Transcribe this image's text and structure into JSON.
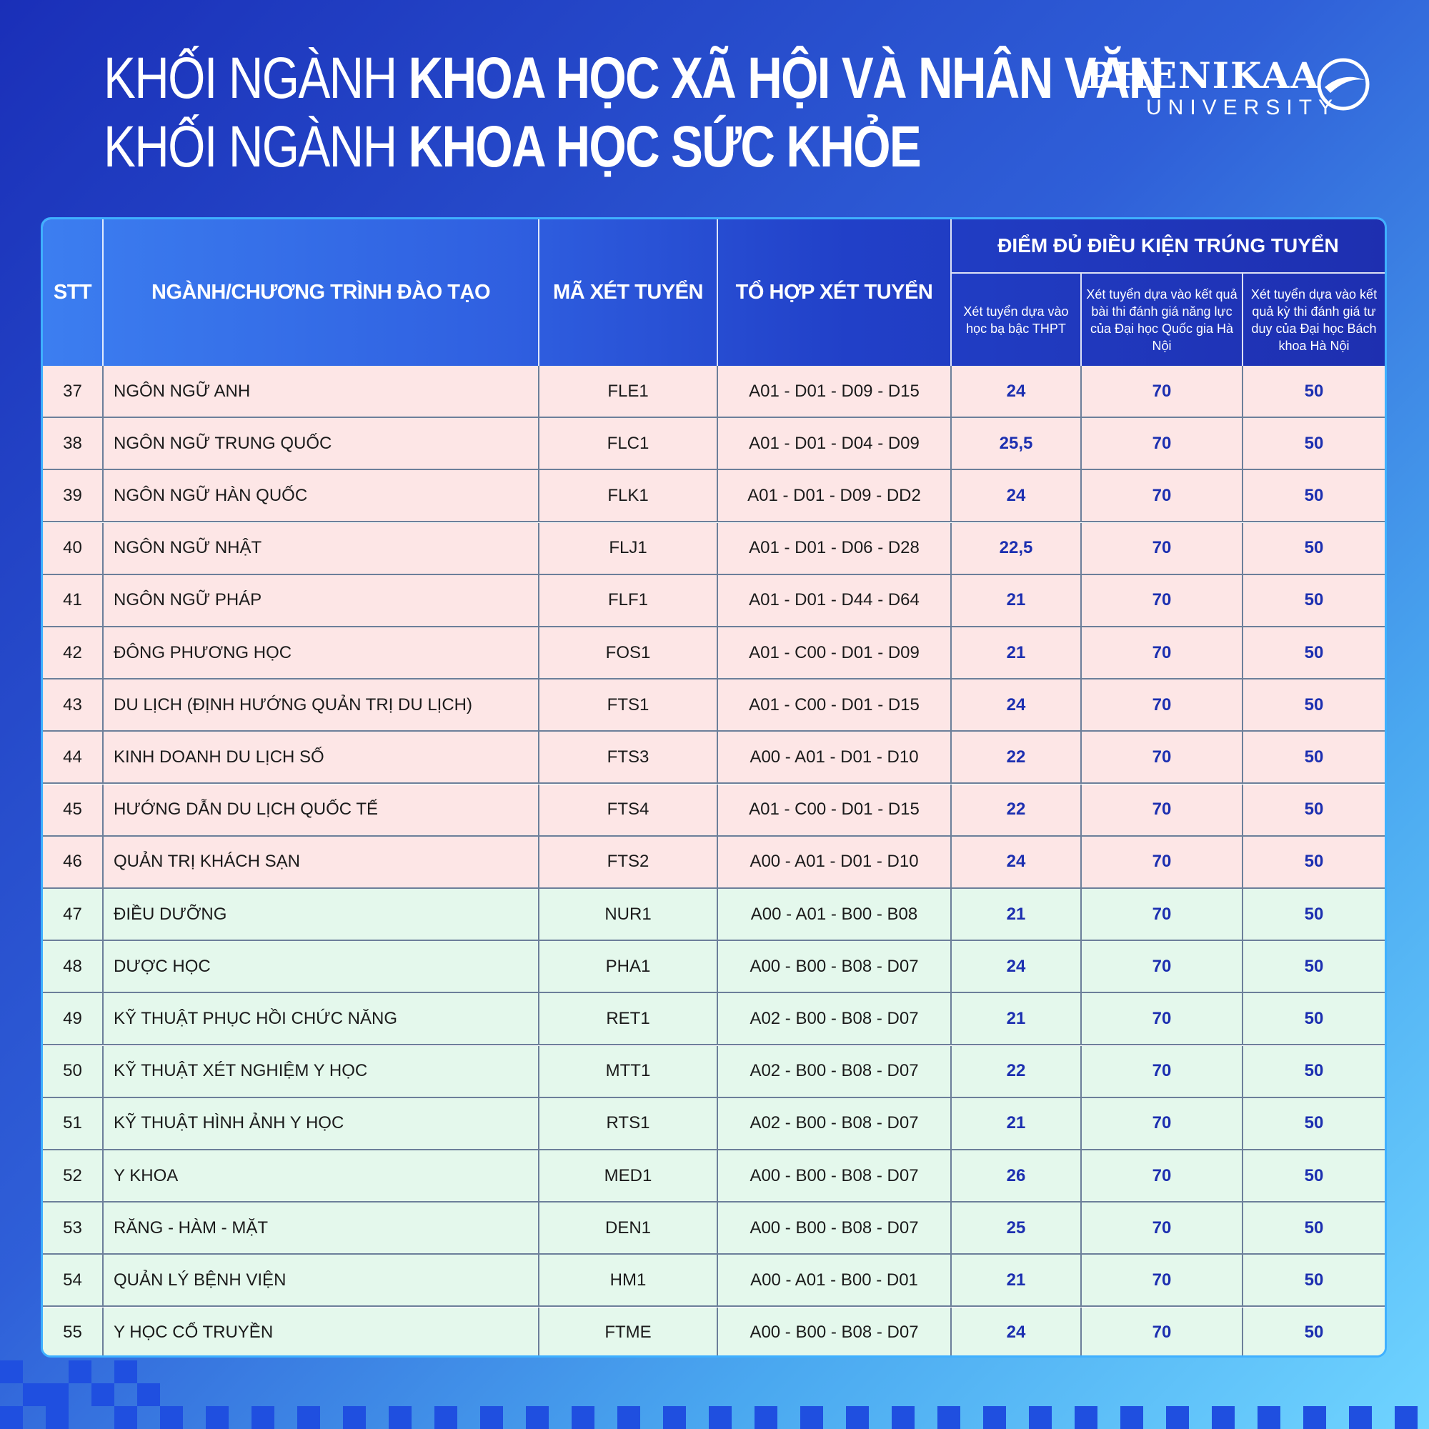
{
  "title": {
    "line1_light": "KHỐI NGÀNH ",
    "line1_bold": "KHOA HỌC XÃ HỘI VÀ NHÂN VĂN",
    "line2_light": "KHỐI NGÀNH ",
    "line2_bold": "KHOA HỌC SỨC KHỎE"
  },
  "logo": {
    "word": "PHENIKAA",
    "sub": "UNIVERSITY"
  },
  "table": {
    "headers": {
      "stt": "STT",
      "name": "NGÀNH/CHƯƠNG TRÌNH ĐÀO TẠO",
      "code": "MÃ XÉT TUYỂN",
      "combo": "TỔ HỢP XÉT TUYỂN",
      "group": "ĐIỂM ĐỦ ĐIỀU KIỆN TRÚNG TUYỂN",
      "sub1": "Xét tuyển dựa vào học bạ bậc THPT",
      "sub2": "Xét tuyển dựa vào kết quả bài thi đánh giá năng lực của Đại học Quốc gia Hà Nội",
      "sub3": "Xét tuyển dựa vào kết quả kỳ thi đánh giá tư duy của Đại học Bách khoa Hà Nội"
    },
    "rows": [
      {
        "stt": "37",
        "name": "NGÔN NGỮ ANH",
        "code": "FLE1",
        "combo": "A01 - D01 - D09 - D15",
        "s1": "24",
        "s2": "70",
        "s3": "50",
        "group": "pink"
      },
      {
        "stt": "38",
        "name": "NGÔN NGỮ TRUNG QUỐC",
        "code": "FLC1",
        "combo": "A01 - D01 - D04 - D09",
        "s1": "25,5",
        "s2": "70",
        "s3": "50",
        "group": "pink"
      },
      {
        "stt": "39",
        "name": "NGÔN NGỮ HÀN QUỐC",
        "code": "FLK1",
        "combo": "A01 - D01 - D09 - DD2",
        "s1": "24",
        "s2": "70",
        "s3": "50",
        "group": "pink"
      },
      {
        "stt": "40",
        "name": "NGÔN NGỮ NHẬT",
        "code": "FLJ1",
        "combo": "A01 - D01 - D06 - D28",
        "s1": "22,5",
        "s2": "70",
        "s3": "50",
        "group": "pink"
      },
      {
        "stt": "41",
        "name": "NGÔN NGỮ PHÁP",
        "code": "FLF1",
        "combo": "A01 - D01 - D44 - D64",
        "s1": "21",
        "s2": "70",
        "s3": "50",
        "group": "pink"
      },
      {
        "stt": "42",
        "name": "ĐÔNG PHƯƠNG HỌC",
        "code": "FOS1",
        "combo": "A01 - C00 - D01 - D09",
        "s1": "21",
        "s2": "70",
        "s3": "50",
        "group": "pink"
      },
      {
        "stt": "43",
        "name": "DU LỊCH (ĐỊNH HƯỚNG QUẢN TRỊ DU LỊCH)",
        "code": "FTS1",
        "combo": "A01 - C00 - D01 - D15",
        "s1": "24",
        "s2": "70",
        "s3": "50",
        "group": "pink"
      },
      {
        "stt": "44",
        "name": "KINH DOANH DU LỊCH SỐ",
        "code": "FTS3",
        "combo": "A00 - A01 - D01 - D10",
        "s1": "22",
        "s2": "70",
        "s3": "50",
        "group": "pink"
      },
      {
        "stt": "45",
        "name": "HƯỚNG DẪN DU LỊCH QUỐC TẾ",
        "code": "FTS4",
        "combo": "A01 - C00 - D01 - D15",
        "s1": "22",
        "s2": "70",
        "s3": "50",
        "group": "pink"
      },
      {
        "stt": "46",
        "name": "QUẢN TRỊ KHÁCH SẠN",
        "code": "FTS2",
        "combo": "A00 - A01 - D01 - D10",
        "s1": "24",
        "s2": "70",
        "s3": "50",
        "group": "pink"
      },
      {
        "stt": "47",
        "name": "ĐIỀU DƯỠNG",
        "code": "NUR1",
        "combo": "A00 - A01 - B00 - B08",
        "s1": "21",
        "s2": "70",
        "s3": "50",
        "group": "green"
      },
      {
        "stt": "48",
        "name": "DƯỢC HỌC",
        "code": "PHA1",
        "combo": "A00 - B00 - B08 - D07",
        "s1": "24",
        "s2": "70",
        "s3": "50",
        "group": "green"
      },
      {
        "stt": "49",
        "name": "KỸ THUẬT PHỤC HỒI CHỨC NĂNG",
        "code": "RET1",
        "combo": "A02 - B00 - B08 - D07",
        "s1": "21",
        "s2": "70",
        "s3": "50",
        "group": "green"
      },
      {
        "stt": "50",
        "name": "KỸ THUẬT XÉT NGHIỆM Y HỌC",
        "code": "MTT1",
        "combo": "A02 - B00 - B08 - D07",
        "s1": "22",
        "s2": "70",
        "s3": "50",
        "group": "green"
      },
      {
        "stt": "51",
        "name": "KỸ THUẬT HÌNH ẢNH Y HỌC",
        "code": "RTS1",
        "combo": "A02 - B00 - B08 - D07",
        "s1": "21",
        "s2": "70",
        "s3": "50",
        "group": "green"
      },
      {
        "stt": "52",
        "name": "Y KHOA",
        "code": "MED1",
        "combo": "A00 - B00 - B08 - D07",
        "s1": "26",
        "s2": "70",
        "s3": "50",
        "group": "green"
      },
      {
        "stt": "53",
        "name": "RĂNG - HÀM - MẶT",
        "code": "DEN1",
        "combo": "A00 - B00 - B08 - D07",
        "s1": "25",
        "s2": "70",
        "s3": "50",
        "group": "green"
      },
      {
        "stt": "54",
        "name": "QUẢN LÝ BỆNH VIỆN",
        "code": "HM1",
        "combo": "A00 - A01 - B00 - D01",
        "s1": "21",
        "s2": "70",
        "s3": "50",
        "group": "green"
      },
      {
        "stt": "55",
        "name": "Y HỌC CỔ TRUYỀN",
        "code": "FTME",
        "combo": "A00 - B00 - B08 - D07",
        "s1": "24",
        "s2": "70",
        "s3": "50",
        "group": "green"
      }
    ]
  }
}
